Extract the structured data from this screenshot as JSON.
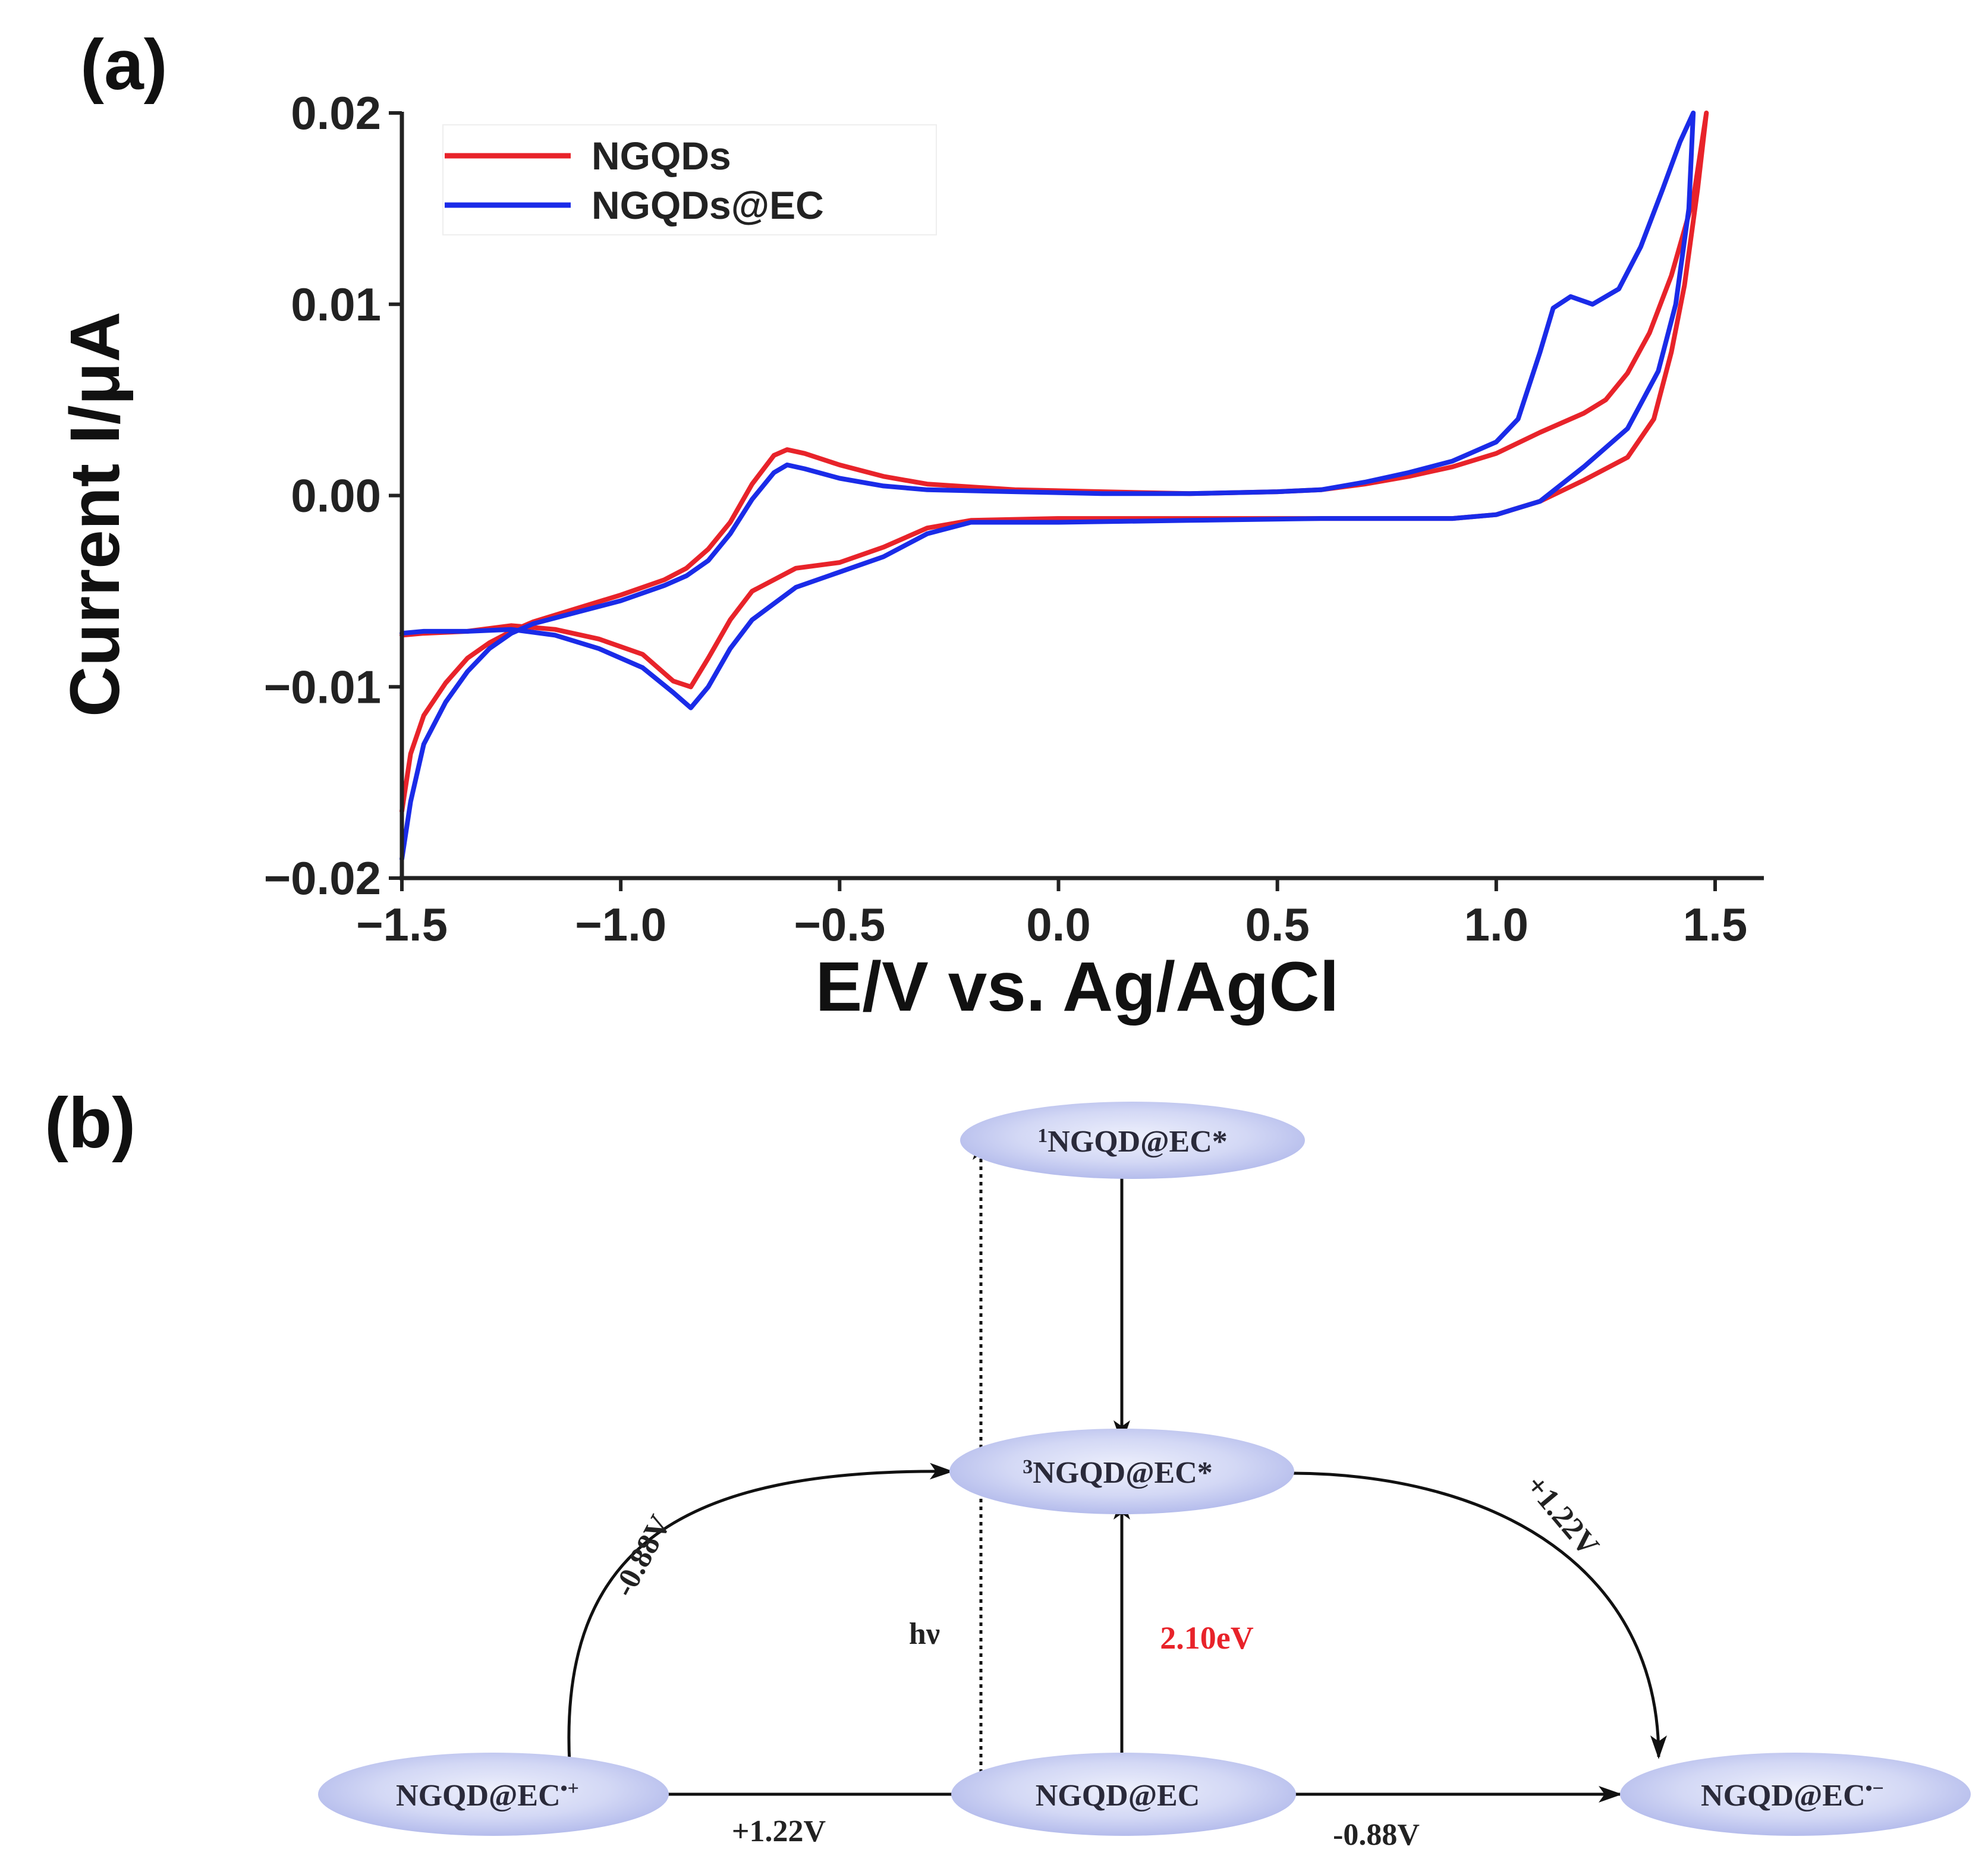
{
  "panel_a": {
    "label": "(a)"
  },
  "panel_b": {
    "label": "(b)",
    "nodes": {
      "singlet": {
        "sup": "1",
        "text": "NGQD@EC*"
      },
      "triplet": {
        "sup": "3",
        "text": "NGQD@EC*"
      },
      "cation": {
        "text": "NGQD@EC",
        "sup": "•+"
      },
      "ground": {
        "text": "NGQD@EC"
      },
      "anion": {
        "text": "NGQD@EC",
        "sup": "•−"
      }
    },
    "edges": {
      "excite": "hν",
      "gap": "2.10eV",
      "cation_to_triplet": "-0.88V",
      "triplet_to_anion": "+1.22V",
      "cation_to_ground": "+1.22V",
      "ground_to_anion": "-0.88V"
    },
    "colors": {
      "node_fill": "#c7cdf1",
      "node_fill_center": "#e8ebfb",
      "accent_red": "#e8232a"
    }
  },
  "chart_data": {
    "type": "line",
    "title": "",
    "xlabel": "E/V vs. Ag/AgCl",
    "ylabel": "Current I/μA",
    "xlim": [
      -1.5,
      1.5
    ],
    "ylim": [
      -0.02,
      0.02
    ],
    "xticks": [
      {
        "value": -1.5,
        "label": "−1.5"
      },
      {
        "value": -1.0,
        "label": "−1.0"
      },
      {
        "value": -0.5,
        "label": "−0.5"
      },
      {
        "value": 0.0,
        "label": "0.0"
      },
      {
        "value": 0.5,
        "label": "0.5"
      },
      {
        "value": 1.0,
        "label": "1.0"
      },
      {
        "value": 1.5,
        "label": "1.5"
      }
    ],
    "yticks": [
      {
        "value": 0.02,
        "label": "0.02"
      },
      {
        "value": 0.01,
        "label": "0.01"
      },
      {
        "value": 0.0,
        "label": "0.00"
      },
      {
        "value": -0.01,
        "label": "−0.01"
      },
      {
        "value": -0.02,
        "label": "−0.02"
      }
    ],
    "grid": false,
    "legend_position": "top-left",
    "series": [
      {
        "name": "NGQDs",
        "color": "#e8232a",
        "points": [
          [
            -1.5,
            -0.0165
          ],
          [
            -1.48,
            -0.0135
          ],
          [
            -1.45,
            -0.0115
          ],
          [
            -1.4,
            -0.0098
          ],
          [
            -1.35,
            -0.0085
          ],
          [
            -1.3,
            -0.0077
          ],
          [
            -1.25,
            -0.0071
          ],
          [
            -1.2,
            -0.0066
          ],
          [
            -1.1,
            -0.0059
          ],
          [
            -1.0,
            -0.0052
          ],
          [
            -0.9,
            -0.0044
          ],
          [
            -0.85,
            -0.0038
          ],
          [
            -0.8,
            -0.0028
          ],
          [
            -0.75,
            -0.0014
          ],
          [
            -0.7,
            0.0006
          ],
          [
            -0.65,
            0.0021
          ],
          [
            -0.62,
            0.0024
          ],
          [
            -0.58,
            0.0022
          ],
          [
            -0.5,
            0.0016
          ],
          [
            -0.4,
            0.001
          ],
          [
            -0.3,
            0.0006
          ],
          [
            -0.1,
            0.0003
          ],
          [
            0.1,
            0.0002
          ],
          [
            0.3,
            0.0001
          ],
          [
            0.5,
            0.0002
          ],
          [
            0.6,
            0.0003
          ],
          [
            0.7,
            0.0006
          ],
          [
            0.8,
            0.001
          ],
          [
            0.9,
            0.0015
          ],
          [
            1.0,
            0.0022
          ],
          [
            1.1,
            0.0033
          ],
          [
            1.2,
            0.0043
          ],
          [
            1.25,
            0.005
          ],
          [
            1.3,
            0.0064
          ],
          [
            1.35,
            0.0085
          ],
          [
            1.4,
            0.0115
          ],
          [
            1.45,
            0.0155
          ],
          [
            1.48,
            0.02
          ],
          [
            1.46,
            0.016
          ],
          [
            1.43,
            0.011
          ],
          [
            1.4,
            0.0075
          ],
          [
            1.36,
            0.004
          ],
          [
            1.3,
            0.002
          ],
          [
            1.2,
            0.0008
          ],
          [
            1.1,
            -0.0003
          ],
          [
            1.0,
            -0.001
          ],
          [
            0.9,
            -0.0012
          ],
          [
            0.6,
            -0.0012
          ],
          [
            0.3,
            -0.0012
          ],
          [
            0.0,
            -0.0012
          ],
          [
            -0.2,
            -0.0013
          ],
          [
            -0.3,
            -0.0017
          ],
          [
            -0.4,
            -0.0027
          ],
          [
            -0.5,
            -0.0035
          ],
          [
            -0.6,
            -0.0038
          ],
          [
            -0.7,
            -0.005
          ],
          [
            -0.75,
            -0.0065
          ],
          [
            -0.8,
            -0.0085
          ],
          [
            -0.84,
            -0.01
          ],
          [
            -0.88,
            -0.0097
          ],
          [
            -0.95,
            -0.0083
          ],
          [
            -1.05,
            -0.0075
          ],
          [
            -1.15,
            -0.007
          ],
          [
            -1.25,
            -0.0068
          ],
          [
            -1.35,
            -0.0071
          ],
          [
            -1.45,
            -0.0072
          ],
          [
            -1.5,
            -0.0073
          ]
        ]
      },
      {
        "name": "NGQDs@EC",
        "color": "#1a2be8",
        "points": [
          [
            -1.5,
            -0.019
          ],
          [
            -1.48,
            -0.016
          ],
          [
            -1.45,
            -0.013
          ],
          [
            -1.4,
            -0.0108
          ],
          [
            -1.35,
            -0.0092
          ],
          [
            -1.3,
            -0.008
          ],
          [
            -1.25,
            -0.0072
          ],
          [
            -1.2,
            -0.0067
          ],
          [
            -1.1,
            -0.0061
          ],
          [
            -1.0,
            -0.0055
          ],
          [
            -0.9,
            -0.0047
          ],
          [
            -0.85,
            -0.0042
          ],
          [
            -0.8,
            -0.0034
          ],
          [
            -0.75,
            -0.002
          ],
          [
            -0.7,
            -0.0002
          ],
          [
            -0.65,
            0.0012
          ],
          [
            -0.62,
            0.0016
          ],
          [
            -0.58,
            0.0014
          ],
          [
            -0.5,
            0.0009
          ],
          [
            -0.4,
            0.0005
          ],
          [
            -0.3,
            0.0003
          ],
          [
            -0.1,
            0.0002
          ],
          [
            0.1,
            0.0001
          ],
          [
            0.3,
            0.0001
          ],
          [
            0.5,
            0.0002
          ],
          [
            0.6,
            0.0003
          ],
          [
            0.7,
            0.0007
          ],
          [
            0.8,
            0.0012
          ],
          [
            0.9,
            0.0018
          ],
          [
            1.0,
            0.0028
          ],
          [
            1.05,
            0.004
          ],
          [
            1.1,
            0.0075
          ],
          [
            1.13,
            0.0098
          ],
          [
            1.17,
            0.0104
          ],
          [
            1.22,
            0.01
          ],
          [
            1.28,
            0.0108
          ],
          [
            1.33,
            0.013
          ],
          [
            1.38,
            0.016
          ],
          [
            1.42,
            0.0185
          ],
          [
            1.45,
            0.02
          ],
          [
            1.44,
            0.015
          ],
          [
            1.41,
            0.01
          ],
          [
            1.37,
            0.0065
          ],
          [
            1.3,
            0.0035
          ],
          [
            1.2,
            0.0015
          ],
          [
            1.1,
            -0.0003
          ],
          [
            1.0,
            -0.001
          ],
          [
            0.9,
            -0.0012
          ],
          [
            0.6,
            -0.0012
          ],
          [
            0.3,
            -0.0013
          ],
          [
            0.0,
            -0.0014
          ],
          [
            -0.2,
            -0.0014
          ],
          [
            -0.3,
            -0.002
          ],
          [
            -0.4,
            -0.0032
          ],
          [
            -0.5,
            -0.004
          ],
          [
            -0.6,
            -0.0048
          ],
          [
            -0.7,
            -0.0065
          ],
          [
            -0.75,
            -0.008
          ],
          [
            -0.8,
            -0.01
          ],
          [
            -0.84,
            -0.0111
          ],
          [
            -0.88,
            -0.0103
          ],
          [
            -0.95,
            -0.009
          ],
          [
            -1.05,
            -0.008
          ],
          [
            -1.15,
            -0.0073
          ],
          [
            -1.25,
            -0.007
          ],
          [
            -1.35,
            -0.0071
          ],
          [
            -1.45,
            -0.0071
          ],
          [
            -1.5,
            -0.0072
          ]
        ]
      }
    ]
  }
}
